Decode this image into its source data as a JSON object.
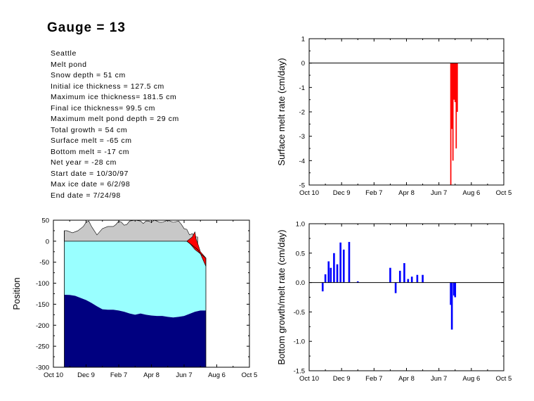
{
  "title": "Gauge = 13",
  "info_lines": [
    "Seattle",
    "Melt pond",
    "Snow depth = 51 cm",
    "Initial ice thickness = 127.5 cm",
    "Maximum ice thickness= 181.5 cm",
    "Final ice thickness= 99.5 cm",
    "Maximum melt pond depth = 29 cm",
    "Total growth = 54 cm",
    "Surface melt = -65 cm",
    "Bottom melt = -17 cm",
    "Net year = -28 cm",
    "Start date = 10/30/97",
    "Max ice date = 6/2/98",
    "End date = 7/24/98"
  ],
  "colors": {
    "snow": "#c8c8c8",
    "pond": "#ff0000",
    "ice": "#99ffff",
    "water": "#000080",
    "surface_melt": "#ff0000",
    "bottom_growth": "#0000ff"
  },
  "chart_data": [
    {
      "type": "area",
      "x_ticklabels": [
        "Oct 10",
        "Dec 9",
        "Feb 7",
        "Apr 8",
        "Jun 7",
        "Aug 6",
        "Oct 5"
      ],
      "x_tick_days": [
        0,
        60,
        120,
        180,
        240,
        300,
        360
      ],
      "ylabel": "Position",
      "ylim": [
        -300,
        50
      ],
      "yticks": [
        50,
        0,
        -50,
        -100,
        -150,
        -200,
        -250,
        -300
      ],
      "series": [
        {
          "key": "snow_top",
          "x": [
            20,
            25,
            35,
            45,
            55,
            60,
            65,
            70,
            75,
            80,
            90,
            100,
            110,
            115,
            120,
            125,
            130,
            135,
            140,
            150,
            160,
            165,
            170,
            175,
            180,
            185,
            190,
            195,
            200,
            210,
            220,
            230,
            235,
            240,
            245,
            250,
            255,
            260,
            262,
            265
          ],
          "y": [
            25,
            25,
            20,
            25,
            35,
            45,
            48,
            35,
            25,
            15,
            30,
            35,
            35,
            40,
            48,
            45,
            38,
            40,
            48,
            50,
            48,
            42,
            48,
            48,
            45,
            50,
            48,
            45,
            45,
            50,
            45,
            48,
            40,
            30,
            28,
            15,
            18,
            12,
            10,
            10
          ]
        },
        {
          "key": "pond_surface",
          "x": [
            240,
            245,
            250,
            255,
            258,
            260,
            262,
            265
          ],
          "y": [
            0,
            0,
            5,
            10,
            18,
            22,
            5,
            -5
          ]
        },
        {
          "key": "ice_top",
          "x": [
            20,
            245,
            250,
            255,
            260,
            265,
            270,
            275,
            280
          ],
          "y": [
            0,
            0,
            -5,
            -10,
            -15,
            -20,
            -30,
            -35,
            -40
          ]
        },
        {
          "key": "pond_bottom",
          "x": [
            245,
            250,
            255,
            260,
            265,
            270,
            275,
            280
          ],
          "y": [
            0,
            -5,
            -12,
            -20,
            -25,
            -30,
            -45,
            -60
          ]
        },
        {
          "key": "ice_bottom",
          "x": [
            20,
            30,
            40,
            50,
            60,
            70,
            80,
            90,
            100,
            110,
            120,
            130,
            140,
            150,
            160,
            170,
            180,
            190,
            200,
            210,
            220,
            230,
            240,
            250,
            260,
            270,
            280
          ],
          "y": [
            -127.5,
            -128,
            -130,
            -135,
            -140,
            -147,
            -155,
            -162,
            -163,
            -163,
            -165,
            -168,
            -172,
            -175,
            -172,
            -175,
            -177,
            -178,
            -178,
            -180,
            -181.5,
            -180,
            -178,
            -173,
            -168,
            -165,
            -165
          ]
        }
      ]
    },
    {
      "type": "bar",
      "x_ticklabels": [
        "Oct 10",
        "Dec 9",
        "Feb 7",
        "Apr 8",
        "Jun 7",
        "Aug 6",
        "Oct 5"
      ],
      "x_tick_days": [
        0,
        60,
        120,
        180,
        240,
        300,
        360
      ],
      "ylabel": "Surface melt rate (cm/day)",
      "ylim": [
        -5,
        1
      ],
      "yticks": [
        1,
        0,
        -1,
        -2,
        -3,
        -4,
        -5
      ],
      "x": [
        262,
        264,
        266,
        268,
        270,
        272,
        274
      ],
      "values": [
        -5.0,
        -2.7,
        -4.0,
        -1.5,
        -1.6,
        -3.5,
        -2.0
      ]
    },
    {
      "type": "bar",
      "x_ticklabels": [
        "Oct 10",
        "Dec 9",
        "Feb 7",
        "Apr 8",
        "Jun 7",
        "Aug 6",
        "Oct 5"
      ],
      "x_tick_days": [
        0,
        60,
        120,
        180,
        240,
        300,
        360
      ],
      "ylabel": "Bottom growth/melt rate (cm/day)",
      "ylim": [
        -1.5,
        1.0
      ],
      "yticks": [
        1.0,
        0.5,
        0.0,
        -0.5,
        -1.0,
        -1.5
      ],
      "x": [
        25,
        30,
        36,
        40,
        46,
        52,
        58,
        64,
        74,
        90,
        150,
        160,
        168,
        176,
        183,
        190,
        200,
        210,
        220,
        226,
        262,
        264,
        268,
        270
      ],
      "values": [
        -0.15,
        0.14,
        0.36,
        0.25,
        0.5,
        0.31,
        0.68,
        0.56,
        0.69,
        0.02,
        0.25,
        -0.18,
        0.2,
        0.33,
        0.06,
        0.1,
        0.13,
        0.13,
        0.0,
        0.0,
        -0.38,
        -0.8,
        -0.22,
        -0.25
      ]
    }
  ]
}
